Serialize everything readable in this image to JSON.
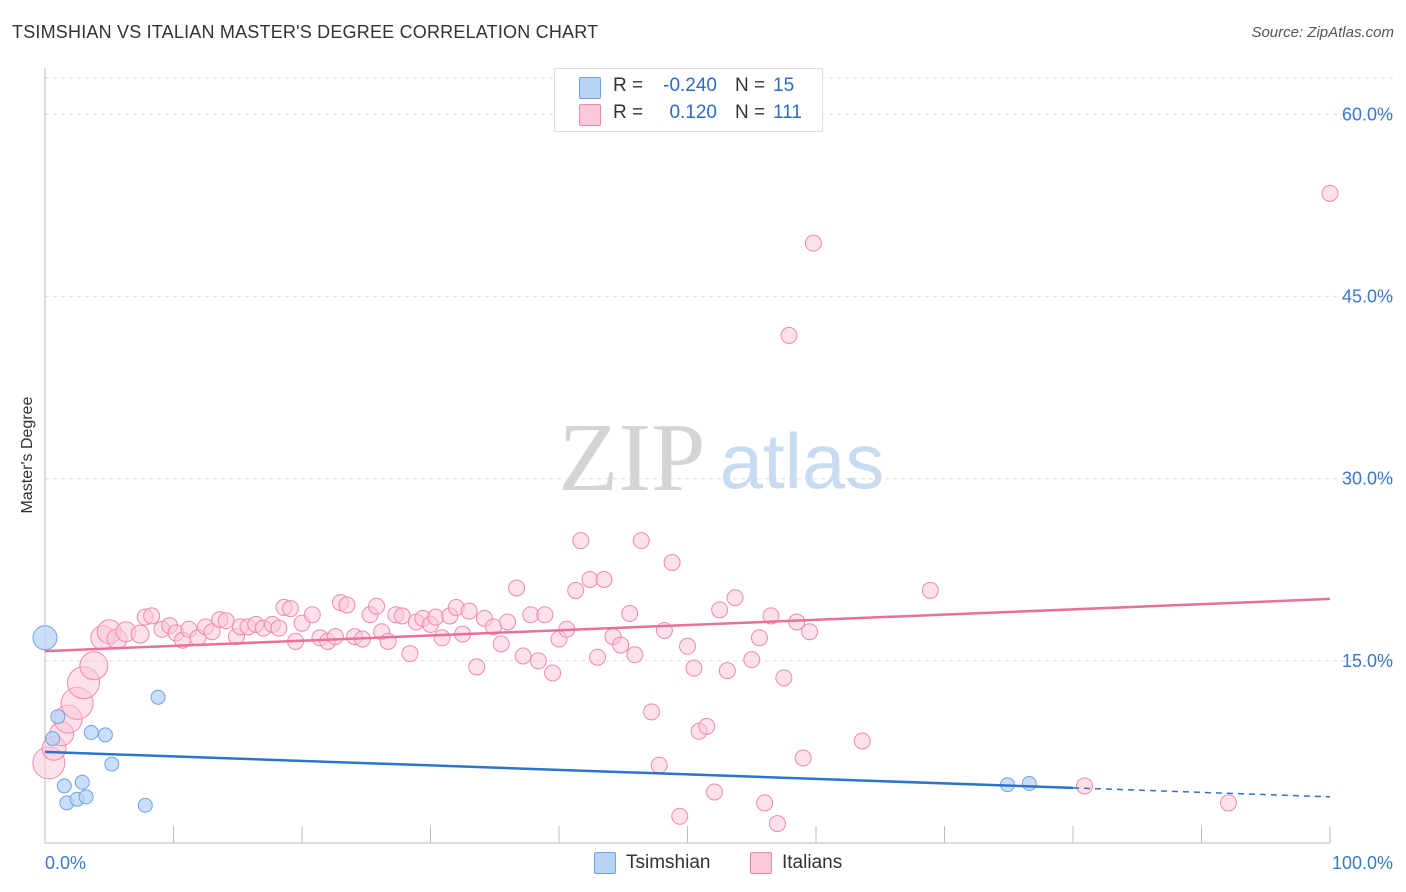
{
  "header": {
    "title": "TSIMSHIAN VS ITALIAN MASTER'S DEGREE CORRELATION CHART",
    "source": "Source: ZipAtlas.com"
  },
  "watermark": {
    "zip": "ZIP",
    "atlas": "atlas"
  },
  "legend": {
    "rows": [
      {
        "r_label": "R =",
        "r_value": "-0.240",
        "n_label": "N =",
        "n_value": "15",
        "color": "#6fa2e6"
      },
      {
        "r_label": "R =",
        "r_value": "0.120",
        "n_label": "N =",
        "n_value": "111",
        "color": "#f08aa8"
      }
    ]
  },
  "bottom_legend": {
    "series1": "Tsimshian",
    "series2": "Italians"
  },
  "colors": {
    "blue_fill": "#b9d3f5",
    "blue_stroke": "#6fa2e6",
    "blue_line": "#2b73cc",
    "pink_fill": "#f9c9d7",
    "pink_stroke": "#f08aa8",
    "pink_line": "#e8709a",
    "axis_text": "#3a78c9",
    "value_text": "#2b6cc4"
  },
  "chart_data": {
    "type": "scatter",
    "title": "TSIMSHIAN VS ITALIAN MASTER'S DEGREE CORRELATION CHART",
    "ylabel": "Master's Degree",
    "xlabel": "",
    "xlim": [
      0,
      100
    ],
    "ylim": [
      0,
      63
    ],
    "x_tick_labels": [
      "0.0%",
      "100.0%"
    ],
    "y_ticks": [
      15,
      30,
      45,
      60
    ],
    "y_tick_labels": [
      "15.0%",
      "30.0%",
      "45.0%",
      "60.0%"
    ],
    "grid": "horizontal dashed",
    "legend_position": "top-center",
    "series": [
      {
        "name": "Tsimshian",
        "r": -0.24,
        "n": 15,
        "trend": {
          "x0": 0,
          "y0": 7.5,
          "x1": 100,
          "y1": 3.8,
          "solid_until": 80
        },
        "points": [
          [
            0,
            16.9,
            12
          ],
          [
            0.6,
            8.6,
            7
          ],
          [
            1.0,
            10.4,
            7
          ],
          [
            1.5,
            4.7,
            7
          ],
          [
            1.7,
            3.3,
            7
          ],
          [
            2.5,
            3.6,
            7
          ],
          [
            2.9,
            5.0,
            7
          ],
          [
            3.2,
            3.8,
            7
          ],
          [
            3.6,
            9.1,
            7
          ],
          [
            4.7,
            8.9,
            7
          ],
          [
            5.2,
            6.5,
            7
          ],
          [
            7.8,
            3.1,
            7
          ],
          [
            8.8,
            12.0,
            7
          ],
          [
            74.9,
            4.8,
            7
          ],
          [
            76.6,
            4.9,
            7
          ]
        ]
      },
      {
        "name": "Italians",
        "r": 0.12,
        "n": 111,
        "trend": {
          "x0": 0,
          "y0": 15.8,
          "x1": 100,
          "y1": 20.1
        },
        "points": [
          [
            0.3,
            6.6,
            16
          ],
          [
            0.7,
            7.8,
            12
          ],
          [
            1.3,
            9.0,
            12
          ],
          [
            1.8,
            10.2,
            14
          ],
          [
            2.5,
            11.5,
            16
          ],
          [
            3.0,
            13.2,
            16
          ],
          [
            3.8,
            14.6,
            14
          ],
          [
            4.5,
            16.9,
            12
          ],
          [
            5.0,
            17.4,
            12
          ],
          [
            5.6,
            16.8,
            10
          ],
          [
            6.3,
            17.4,
            10
          ],
          [
            7.4,
            17.2,
            9
          ],
          [
            7.8,
            18.6,
            8
          ],
          [
            8.3,
            18.7,
            8
          ],
          [
            9.1,
            17.6,
            8
          ],
          [
            9.7,
            17.9,
            8
          ],
          [
            10.2,
            17.3,
            8
          ],
          [
            10.7,
            16.7,
            8
          ],
          [
            11.2,
            17.6,
            8
          ],
          [
            11.9,
            16.9,
            8
          ],
          [
            12.5,
            17.8,
            8
          ],
          [
            13.0,
            17.4,
            8
          ],
          [
            13.6,
            18.4,
            8
          ],
          [
            14.1,
            18.3,
            8
          ],
          [
            14.9,
            17.0,
            8
          ],
          [
            15.2,
            17.8,
            8
          ],
          [
            15.8,
            17.8,
            8
          ],
          [
            16.4,
            18.0,
            8
          ],
          [
            17.0,
            17.7,
            8
          ],
          [
            17.7,
            18.0,
            8
          ],
          [
            18.2,
            17.7,
            8
          ],
          [
            18.6,
            19.4,
            8
          ],
          [
            19.1,
            19.3,
            8
          ],
          [
            19.5,
            16.6,
            8
          ],
          [
            20.0,
            18.1,
            8
          ],
          [
            20.8,
            18.8,
            8
          ],
          [
            21.4,
            16.9,
            8
          ],
          [
            22.0,
            16.6,
            8
          ],
          [
            22.6,
            17.0,
            8
          ],
          [
            23.0,
            19.8,
            8
          ],
          [
            23.5,
            19.6,
            8
          ],
          [
            24.1,
            17.0,
            8
          ],
          [
            24.7,
            16.8,
            8
          ],
          [
            25.3,
            18.8,
            8
          ],
          [
            25.8,
            19.5,
            8
          ],
          [
            26.2,
            17.4,
            8
          ],
          [
            26.7,
            16.6,
            8
          ],
          [
            27.3,
            18.8,
            8
          ],
          [
            27.8,
            18.7,
            8
          ],
          [
            28.4,
            15.6,
            8
          ],
          [
            28.9,
            18.2,
            8
          ],
          [
            29.4,
            18.5,
            8
          ],
          [
            30.0,
            18.0,
            8
          ],
          [
            30.4,
            18.6,
            8
          ],
          [
            30.9,
            16.9,
            8
          ],
          [
            31.5,
            18.7,
            8
          ],
          [
            32.0,
            19.4,
            8
          ],
          [
            32.5,
            17.2,
            8
          ],
          [
            33.0,
            19.1,
            8
          ],
          [
            33.6,
            14.5,
            8
          ],
          [
            34.2,
            18.5,
            8
          ],
          [
            34.9,
            17.8,
            8
          ],
          [
            35.5,
            16.4,
            8
          ],
          [
            36.0,
            18.2,
            8
          ],
          [
            36.7,
            21.0,
            8
          ],
          [
            37.2,
            15.4,
            8
          ],
          [
            37.8,
            18.8,
            8
          ],
          [
            38.4,
            15.0,
            8
          ],
          [
            38.9,
            18.8,
            8
          ],
          [
            39.5,
            14.0,
            8
          ],
          [
            40.0,
            16.8,
            8
          ],
          [
            40.6,
            17.6,
            8
          ],
          [
            41.3,
            20.8,
            8
          ],
          [
            41.7,
            24.9,
            8
          ],
          [
            42.4,
            21.7,
            8
          ],
          [
            43.0,
            15.3,
            8
          ],
          [
            43.5,
            21.7,
            8
          ],
          [
            44.2,
            17.0,
            8
          ],
          [
            44.8,
            16.3,
            8
          ],
          [
            45.5,
            18.9,
            8
          ],
          [
            45.9,
            15.5,
            8
          ],
          [
            46.4,
            24.9,
            8
          ],
          [
            47.2,
            10.8,
            8
          ],
          [
            47.8,
            6.4,
            8
          ],
          [
            48.2,
            17.5,
            8
          ],
          [
            48.8,
            23.1,
            8
          ],
          [
            49.4,
            2.2,
            8
          ],
          [
            50.0,
            16.2,
            8
          ],
          [
            50.5,
            14.4,
            8
          ],
          [
            50.9,
            9.2,
            8
          ],
          [
            51.5,
            9.6,
            8
          ],
          [
            52.1,
            4.2,
            8
          ],
          [
            52.5,
            19.2,
            8
          ],
          [
            53.1,
            14.2,
            8
          ],
          [
            53.7,
            20.2,
            8
          ],
          [
            55.0,
            15.1,
            8
          ],
          [
            55.6,
            16.9,
            8
          ],
          [
            56.0,
            3.3,
            8
          ],
          [
            56.5,
            18.7,
            8
          ],
          [
            57.0,
            1.6,
            8
          ],
          [
            57.5,
            13.6,
            8
          ],
          [
            58.5,
            18.2,
            8
          ],
          [
            59.0,
            7.0,
            8
          ],
          [
            59.5,
            17.4,
            8
          ],
          [
            59.8,
            49.4,
            8
          ],
          [
            57.9,
            41.8,
            8
          ],
          [
            63.6,
            8.4,
            8
          ],
          [
            68.9,
            20.8,
            8
          ],
          [
            80.9,
            4.7,
            8
          ],
          [
            92.1,
            3.3,
            8
          ],
          [
            100.0,
            53.5,
            8
          ]
        ]
      }
    ]
  }
}
